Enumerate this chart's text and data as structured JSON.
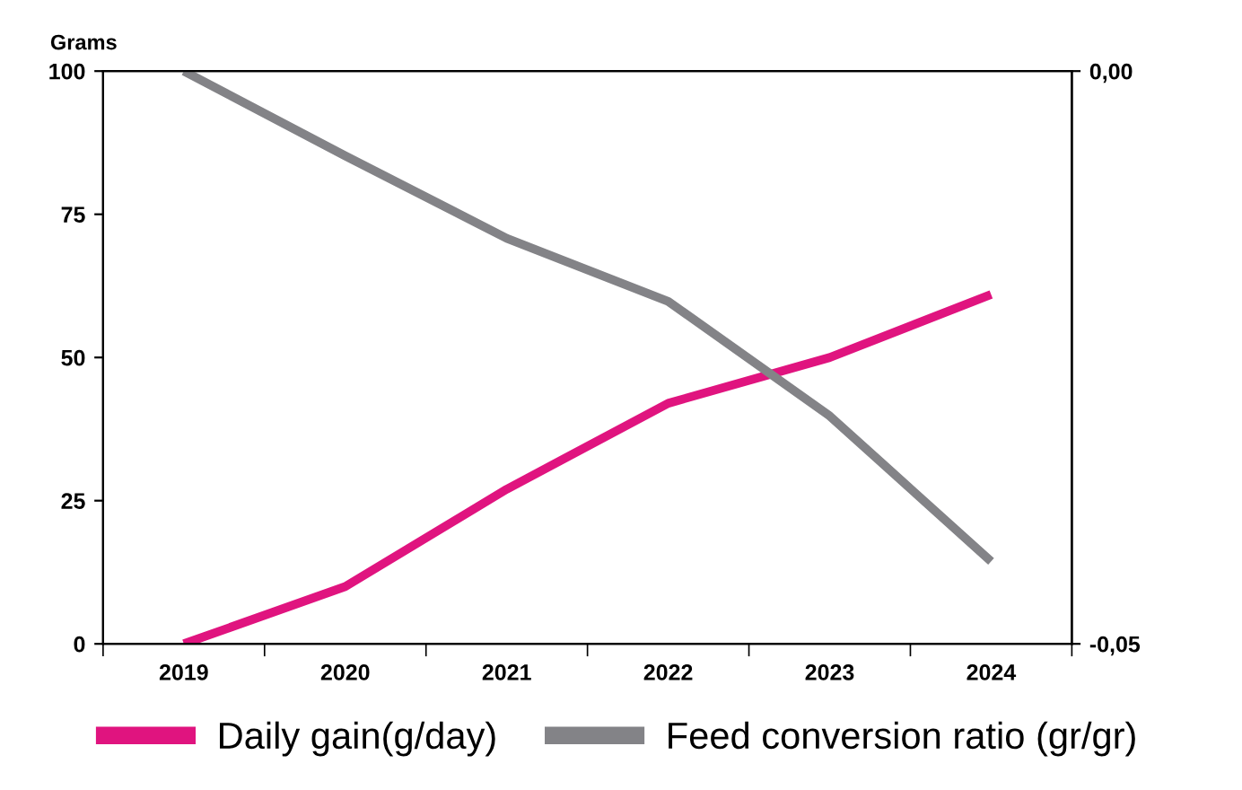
{
  "chart_data": {
    "type": "line",
    "ylabel": "Grams",
    "categories": [
      "2019",
      "2020",
      "2021",
      "2022",
      "2023",
      "2024"
    ],
    "series": [
      {
        "name": "Daily gain(g/day)",
        "color": "#e0147f",
        "values": [
          0,
          10,
          27,
          42,
          50,
          61
        ]
      },
      {
        "name": "Feed conversion ratio (gr/gr)",
        "color": "#838387",
        "axis": "y2",
        "values": [
          0.0,
          -0.0074,
          -0.0146,
          -0.0201,
          -0.0301,
          -0.0428
        ]
      }
    ],
    "ylim": [
      0,
      100
    ],
    "yticks": [
      0,
      25,
      50,
      75,
      100
    ],
    "y2lim": [
      -0.05,
      0
    ],
    "y2ticks": [
      {
        "value": -0.05,
        "label": "-0,05"
      },
      {
        "value": 0,
        "label": "0,00"
      }
    ],
    "grid": false,
    "legend": "bottom",
    "marker": "none",
    "line_style": "solid"
  }
}
